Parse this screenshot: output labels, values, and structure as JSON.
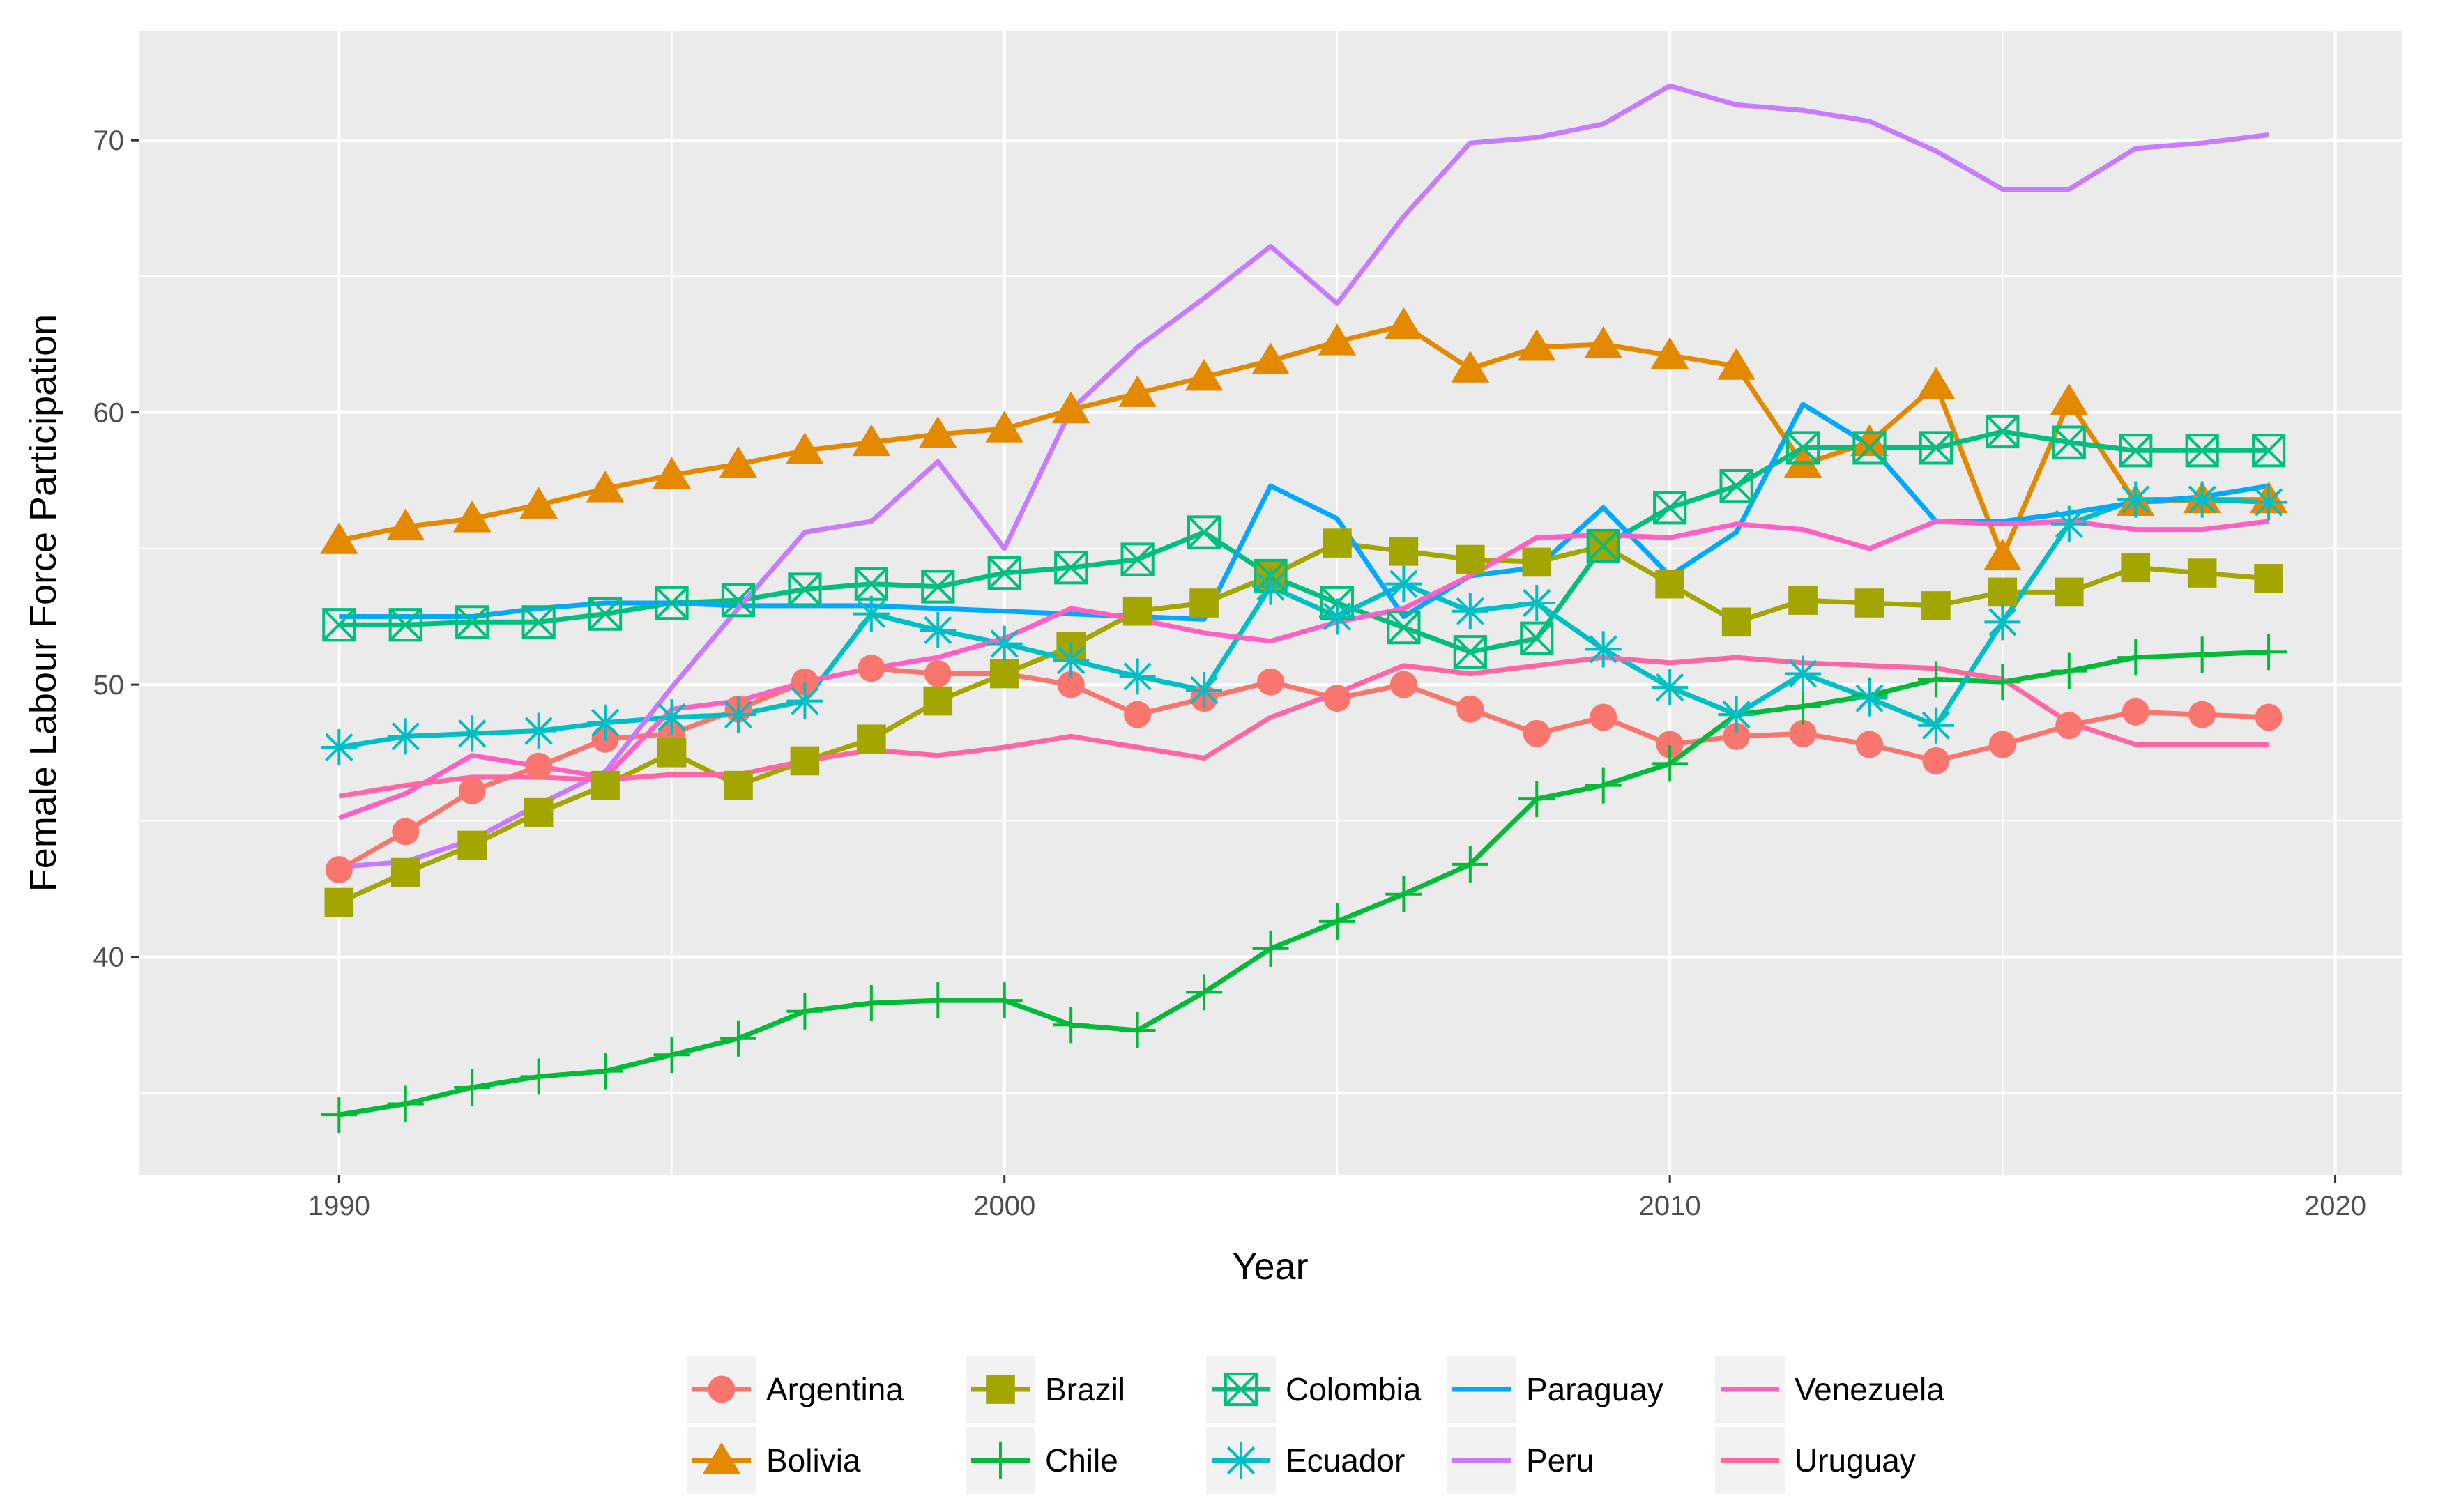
{
  "chart_data": {
    "type": "line",
    "title": "",
    "xlabel": "Year",
    "ylabel": "Female Labour Force Participation",
    "xlim": [
      1987,
      2021
    ],
    "ylim": [
      32,
      74
    ],
    "x_ticks": [
      {
        "value": 1990,
        "label": "1990"
      },
      {
        "value": 2000,
        "label": "2000"
      },
      {
        "value": 2010,
        "label": "2010"
      },
      {
        "value": 2020,
        "label": "2020"
      }
    ],
    "y_ticks": [
      {
        "value": 40,
        "label": "40"
      },
      {
        "value": 50,
        "label": "50"
      },
      {
        "value": 60,
        "label": "60"
      },
      {
        "value": 70,
        "label": "70"
      }
    ],
    "grid": true,
    "legend_position": "bottom",
    "x": [
      1990,
      1991,
      1992,
      1993,
      1994,
      1995,
      1996,
      1997,
      1998,
      1999,
      2000,
      2001,
      2002,
      2003,
      2004,
      2005,
      2006,
      2007,
      2008,
      2009,
      2010,
      2011,
      2012,
      2013,
      2014,
      2015,
      2016,
      2017,
      2018,
      2019
    ],
    "series": [
      {
        "name": "Argentina",
        "color": "#F8766D",
        "marker": "circle",
        "values": [
          43.2,
          44.6,
          46.1,
          47.0,
          48.0,
          48.2,
          49.1,
          50.1,
          50.6,
          50.4,
          50.4,
          50.0,
          48.9,
          49.5,
          50.1,
          49.5,
          50.0,
          49.1,
          48.2,
          48.8,
          47.8,
          48.1,
          48.2,
          47.8,
          47.2,
          47.8,
          48.5,
          49.0,
          48.9,
          48.8
        ]
      },
      {
        "name": "Bolivia",
        "color": "#E38900",
        "marker": "triangle",
        "values": [
          55.3,
          55.8,
          56.1,
          56.6,
          57.2,
          57.7,
          58.1,
          58.6,
          58.9,
          59.2,
          59.4,
          60.1,
          60.7,
          61.3,
          61.9,
          62.6,
          63.2,
          61.6,
          62.4,
          62.5,
          62.1,
          61.7,
          58.1,
          58.9,
          61.0,
          54.7,
          60.4,
          56.7,
          56.8,
          56.8
        ]
      },
      {
        "name": "Brazil",
        "color": "#A3A500",
        "marker": "square",
        "values": [
          42.0,
          43.1,
          44.1,
          45.3,
          46.3,
          47.5,
          46.3,
          47.2,
          48.0,
          49.4,
          50.4,
          51.4,
          52.7,
          53.0,
          54.0,
          55.2,
          54.9,
          54.6,
          54.5,
          55.1,
          53.7,
          52.3,
          53.1,
          53.0,
          52.9,
          53.4,
          53.4,
          54.3,
          54.1,
          53.9
        ]
      },
      {
        "name": "Chile",
        "color": "#00BA38",
        "marker": "plus",
        "values": [
          34.2,
          34.6,
          35.2,
          35.6,
          35.8,
          36.4,
          37.0,
          38.0,
          38.3,
          38.4,
          38.4,
          37.5,
          37.3,
          38.7,
          40.3,
          41.3,
          42.3,
          43.4,
          45.8,
          46.3,
          47.1,
          48.9,
          49.2,
          49.6,
          50.2,
          50.1,
          50.5,
          51.0,
          51.1,
          51.2
        ]
      },
      {
        "name": "Colombia",
        "color": "#00BF7D",
        "marker": "boxcross",
        "values": [
          52.2,
          52.2,
          52.3,
          52.3,
          52.6,
          53.0,
          53.1,
          53.5,
          53.7,
          53.6,
          54.1,
          54.3,
          54.6,
          55.6,
          54.0,
          53.0,
          52.1,
          51.2,
          51.7,
          55.1,
          56.5,
          57.3,
          58.7,
          58.7,
          58.7,
          59.3,
          58.9,
          58.6,
          58.6,
          58.6
        ]
      },
      {
        "name": "Ecuador",
        "color": "#00BFC4",
        "marker": "asterisk",
        "values": [
          47.7,
          48.1,
          48.2,
          48.3,
          48.6,
          48.8,
          48.9,
          49.4,
          52.6,
          52.0,
          51.5,
          50.9,
          50.3,
          49.8,
          53.6,
          52.5,
          53.7,
          52.7,
          53.0,
          51.3,
          49.9,
          48.9,
          50.4,
          49.5,
          48.5,
          52.3,
          55.9,
          56.8,
          56.8,
          56.7
        ]
      },
      {
        "name": "Paraguay",
        "color": "#00A9FF",
        "marker": "none",
        "values": [
          52.5,
          52.5,
          52.5,
          52.8,
          53.0,
          53.0,
          52.9,
          52.9,
          52.9,
          52.8,
          52.7,
          52.6,
          52.5,
          52.4,
          57.3,
          56.1,
          52.5,
          54.0,
          54.3,
          56.5,
          54.0,
          55.6,
          60.3,
          58.8,
          56.0,
          56.0,
          56.3,
          56.7,
          56.9,
          57.3
        ]
      },
      {
        "name": "Peru",
        "color": "#C77CFF",
        "marker": "none",
        "values": [
          43.3,
          43.5,
          44.3,
          45.6,
          46.8,
          49.9,
          52.8,
          55.6,
          56.0,
          58.2,
          55.0,
          60.1,
          62.4,
          64.2,
          66.1,
          64.0,
          67.2,
          69.9,
          70.1,
          70.6,
          72.0,
          71.3,
          71.1,
          70.7,
          69.6,
          68.2,
          68.2,
          69.7,
          69.9,
          70.2
        ]
      },
      {
        "name": "Venezuela",
        "color": "#FF61C3",
        "marker": "none",
        "values": [
          45.1,
          46.0,
          47.4,
          47.0,
          46.6,
          49.1,
          49.4,
          50.1,
          50.6,
          51.0,
          51.7,
          52.8,
          52.4,
          51.9,
          51.6,
          52.3,
          52.8,
          54.0,
          55.4,
          55.5,
          55.4,
          55.9,
          55.7,
          55.0,
          56.0,
          55.9,
          56.0,
          55.7,
          55.7,
          56.0
        ]
      },
      {
        "name": "Uruguay",
        "color": "#FF67A4",
        "marker": "none",
        "values": [
          45.9,
          46.3,
          46.6,
          46.6,
          46.5,
          46.7,
          46.7,
          47.2,
          47.6,
          47.4,
          47.7,
          48.1,
          47.7,
          47.3,
          48.8,
          49.7,
          50.7,
          50.4,
          50.7,
          51.0,
          50.8,
          51.0,
          50.8,
          50.7,
          50.6,
          50.2,
          48.6,
          47.8,
          47.8,
          47.8
        ]
      }
    ],
    "legend_layout": [
      [
        "Argentina",
        "Bolivia"
      ],
      [
        "Brazil",
        "Chile"
      ],
      [
        "Colombia",
        "Ecuador"
      ],
      [
        "Paraguay",
        "Peru"
      ],
      [
        "Venezuela",
        "Uruguay"
      ]
    ]
  }
}
